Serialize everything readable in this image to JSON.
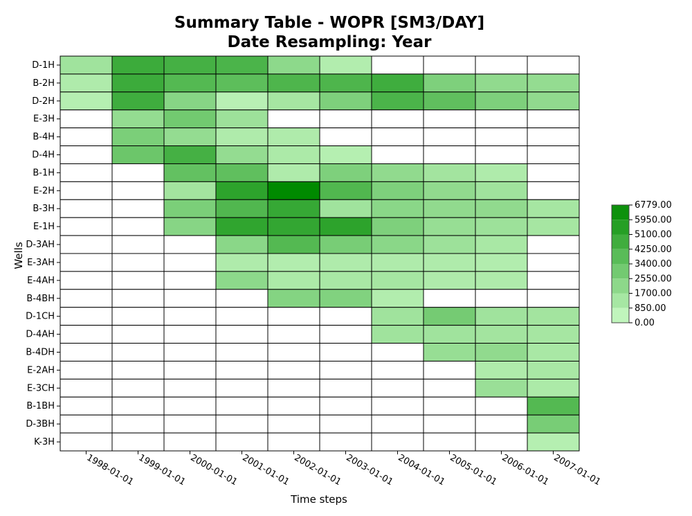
{
  "chart_data": {
    "type": "heatmap",
    "title": "Summary Table - WOPR [SM3/DAY]",
    "subtitle": "Date Resampling: Year",
    "xlabel": "Time steps",
    "ylabel": "Wells",
    "x": [
      "1998-01-01",
      "1999-01-01",
      "2000-01-01",
      "2001-01-01",
      "2002-01-01",
      "2003-01-01",
      "2004-01-01",
      "2005-01-01",
      "2006-01-01",
      "2007-01-01"
    ],
    "y": [
      "D-1H",
      "B-2H",
      "D-2H",
      "E-3H",
      "B-4H",
      "D-4H",
      "B-1H",
      "E-2H",
      "B-3H",
      "E-1H",
      "D-3AH",
      "E-3AH",
      "E-4AH",
      "B-4BH",
      "D-1CH",
      "D-4AH",
      "B-4DH",
      "E-2AH",
      "E-3CH",
      "B-1BH",
      "D-3BH",
      "K-3H"
    ],
    "values": [
      [
        1500,
        4800,
        4500,
        4300,
        2100,
        900,
        null,
        null,
        null,
        null
      ],
      [
        1000,
        4800,
        4000,
        3700,
        4200,
        4200,
        4700,
        2600,
        2000,
        1900
      ],
      [
        800,
        4700,
        2300,
        700,
        1300,
        2600,
        4300,
        3600,
        2600,
        2000
      ],
      [
        null,
        1900,
        3000,
        1600,
        null,
        null,
        null,
        null,
        null,
        null
      ],
      [
        null,
        2700,
        1900,
        1000,
        1000,
        null,
        null,
        null,
        null,
        null
      ],
      [
        null,
        3200,
        4500,
        1900,
        1100,
        800,
        null,
        null,
        null,
        null
      ],
      [
        null,
        null,
        3500,
        3600,
        1000,
        2600,
        2000,
        1400,
        1000,
        null
      ],
      [
        null,
        null,
        1400,
        5300,
        6779,
        4100,
        2600,
        2000,
        1500,
        null
      ],
      [
        null,
        null,
        2700,
        4100,
        5000,
        1500,
        2200,
        2000,
        2000,
        1300
      ],
      [
        null,
        null,
        2300,
        5200,
        5100,
        5300,
        2600,
        1800,
        1600,
        1300
      ],
      [
        null,
        null,
        null,
        2200,
        4000,
        2800,
        2200,
        1600,
        1200,
        null
      ],
      [
        null,
        null,
        null,
        1000,
        900,
        1000,
        1000,
        1000,
        900,
        null
      ],
      [
        null,
        null,
        null,
        2100,
        1100,
        1200,
        1300,
        1000,
        1000,
        null
      ],
      [
        null,
        null,
        null,
        null,
        2400,
        2500,
        900,
        null,
        null,
        null
      ],
      [
        null,
        null,
        null,
        null,
        null,
        null,
        1500,
        2900,
        1500,
        1400
      ],
      [
        null,
        null,
        null,
        null,
        null,
        null,
        1500,
        1500,
        1400,
        1300
      ],
      [
        null,
        null,
        null,
        null,
        null,
        null,
        null,
        1800,
        2000,
        1200
      ],
      [
        null,
        null,
        null,
        null,
        null,
        null,
        null,
        null,
        1000,
        1200
      ],
      [
        null,
        null,
        null,
        null,
        null,
        null,
        null,
        null,
        1700,
        1100
      ],
      [
        null,
        null,
        null,
        null,
        null,
        null,
        null,
        null,
        null,
        4000
      ],
      [
        null,
        null,
        null,
        null,
        null,
        null,
        null,
        null,
        null,
        2800
      ],
      [
        null,
        null,
        null,
        null,
        null,
        null,
        null,
        null,
        null,
        800
      ]
    ],
    "colorbar": {
      "ticks": [
        "6779.00",
        "5950.00",
        "5100.00",
        "4250.00",
        "3400.00",
        "2550.00",
        "1700.00",
        "850.00",
        "0.00"
      ],
      "min": 0,
      "max": 6779,
      "low_color": "#cdfcc9",
      "high_color": "#008a00",
      "position": "right"
    },
    "grid": true
  }
}
